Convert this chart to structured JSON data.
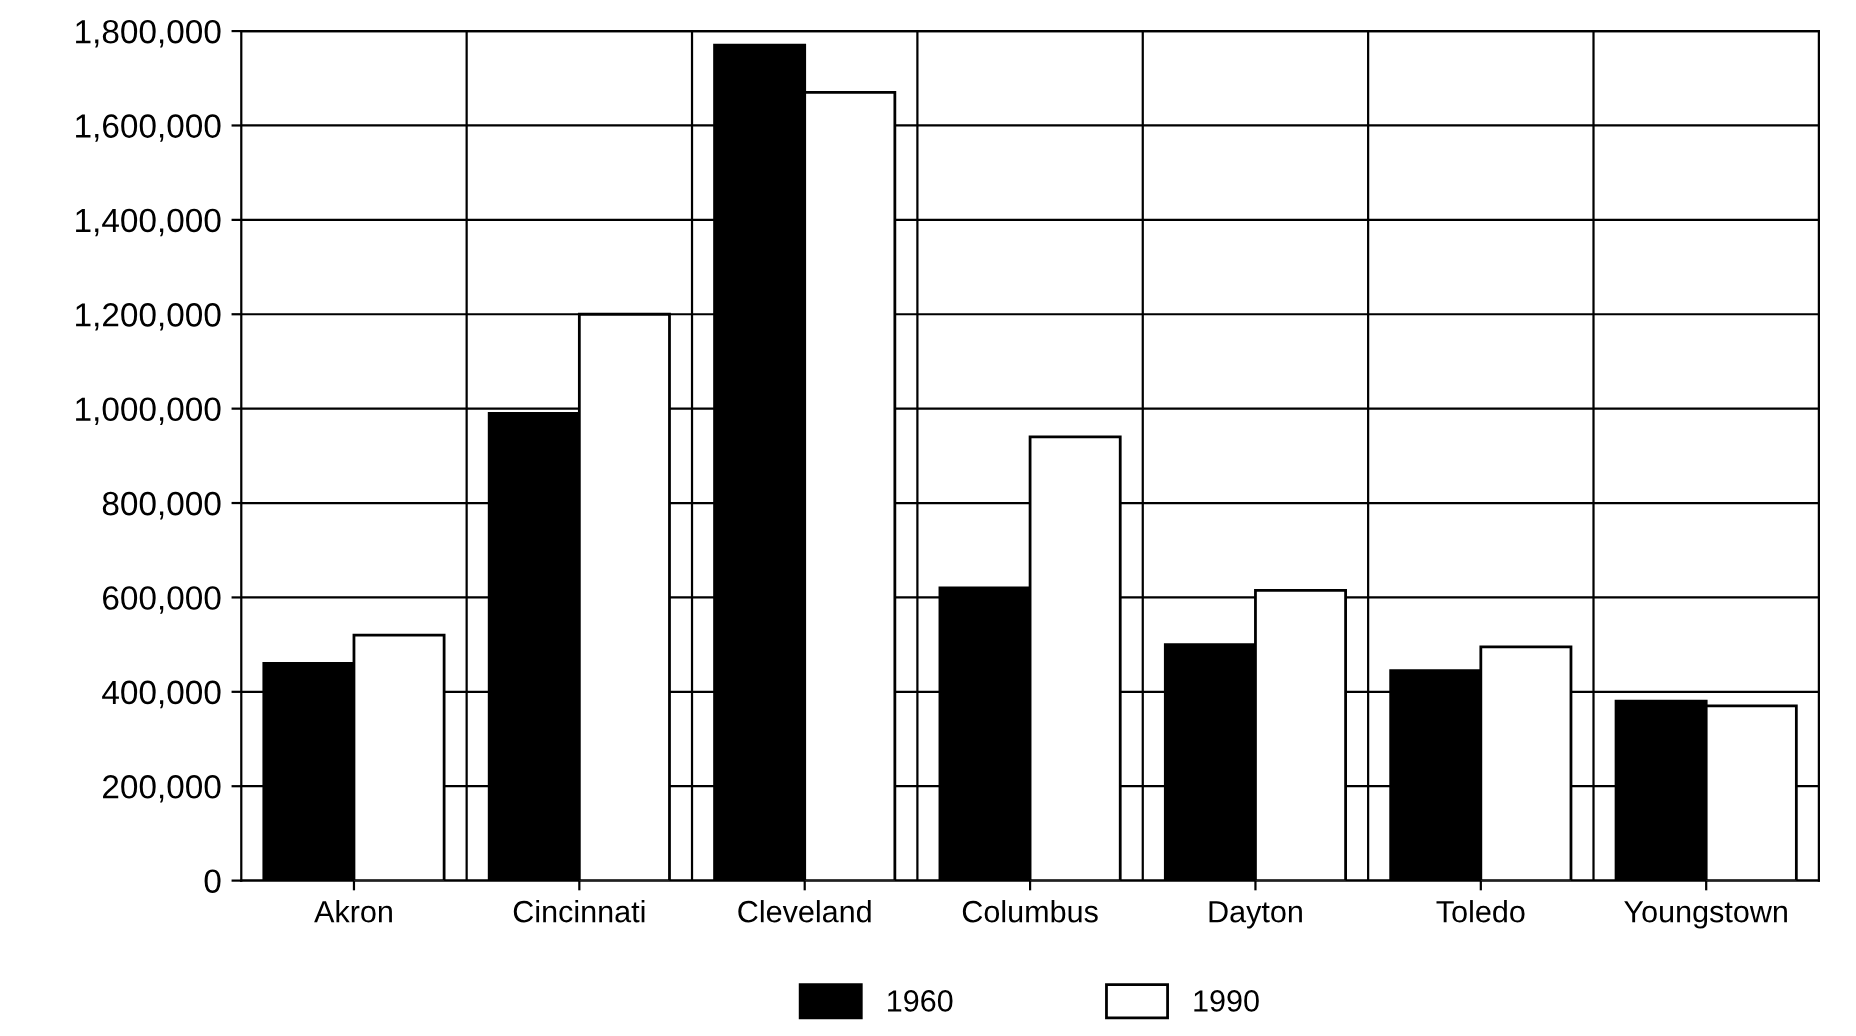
{
  "chart_data": {
    "type": "bar",
    "categories": [
      "Akron",
      "Cincinnati",
      "Cleveland",
      "Columbus",
      "Dayton",
      "Toledo",
      "Youngstown"
    ],
    "series": [
      {
        "name": "1960",
        "color": "#000000",
        "values": [
          460000,
          990000,
          1770000,
          620000,
          500000,
          445000,
          380000
        ]
      },
      {
        "name": "1990",
        "color": "#ffffff",
        "values": [
          520000,
          1200000,
          1670000,
          940000,
          615000,
          495000,
          370000
        ]
      }
    ],
    "ylim": [
      0,
      1800000
    ],
    "yticks": [
      {
        "value": 0,
        "label": "0"
      },
      {
        "value": 200000,
        "label": "200,000"
      },
      {
        "value": 400000,
        "label": "400,000"
      },
      {
        "value": 600000,
        "label": "600,000"
      },
      {
        "value": 800000,
        "label": "800,000"
      },
      {
        "value": 1000000,
        "label": "1,000,000"
      },
      {
        "value": 1200000,
        "label": "1,200,000"
      },
      {
        "value": 1400000,
        "label": "1,400,000"
      },
      {
        "value": 1600000,
        "label": "1,600,000"
      },
      {
        "value": 1800000,
        "label": "1,800,000"
      }
    ],
    "grid": true,
    "legend": "bottom"
  }
}
